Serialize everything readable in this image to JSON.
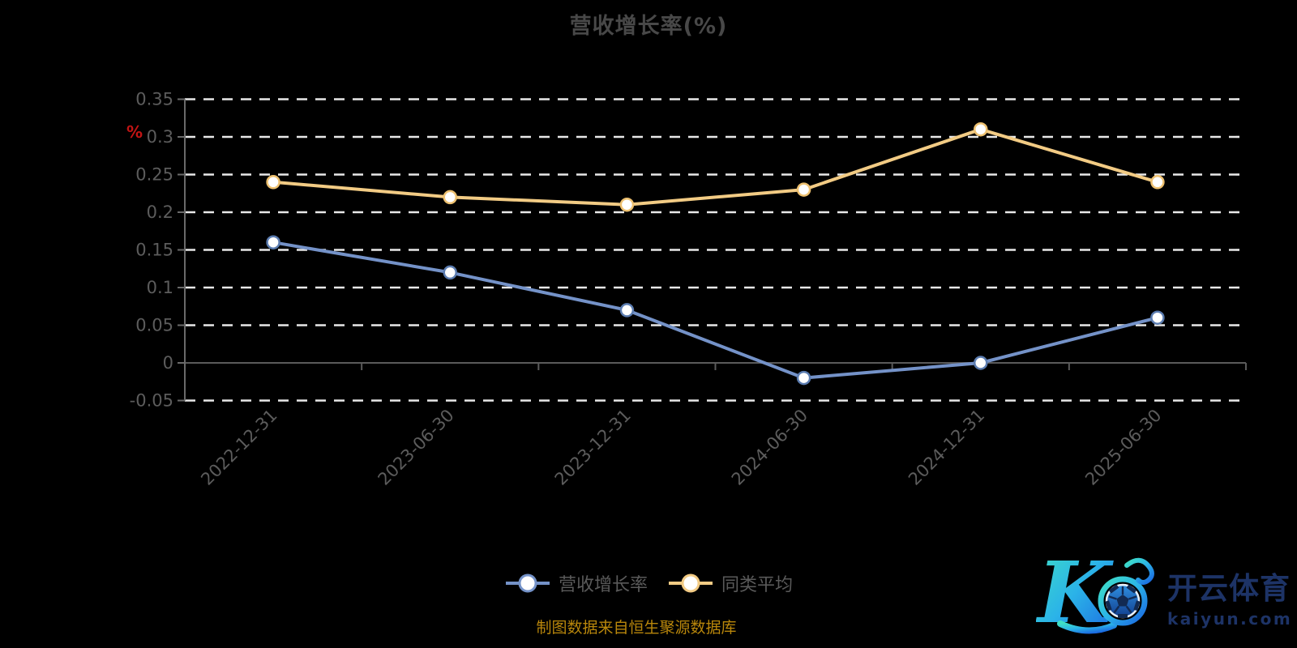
{
  "title": "营收增长率(%)",
  "y_axis_unit": "%",
  "source_note": "制图数据来自恒生聚源数据库",
  "logo": {
    "brand_cn": "开云体育",
    "domain": "kaiyun.com",
    "mark_letter": "K"
  },
  "colors": {
    "background": "#000000",
    "title_text": "#484848",
    "axis_label": "#5c5c5c",
    "axis_line": "#5a5a5a",
    "gridline": "#e8e8e8",
    "y_unit_red": "#c21414",
    "series_blue": "#7492c8",
    "series_yellow": "#f2cb84",
    "source_gold": "#b8860b",
    "logo_navy": "#1d3366"
  },
  "chart_data": {
    "type": "line",
    "categories": [
      "2022-12-31",
      "2023-06-30",
      "2023-12-31",
      "2024-06-30",
      "2024-12-31",
      "2025-06-30"
    ],
    "series": [
      {
        "name": "营收增长率",
        "color": "#7492c8",
        "marker_border": "#5b7cb0",
        "values": [
          0.16,
          0.12,
          0.07,
          -0.02,
          0,
          0.06
        ]
      },
      {
        "name": "同类平均",
        "color": "#f2cb84",
        "marker_border": "#eec170",
        "values": [
          0.24,
          0.22,
          0.21,
          0.23,
          0.31,
          0.24
        ]
      }
    ],
    "title": "营收增长率(%)",
    "xlabel": "",
    "ylabel": "%",
    "ylim": [
      -0.05,
      0.35
    ],
    "ytick_step": 0.05,
    "grid": true,
    "gridline_style": "dashed",
    "legend_position": "bottom",
    "x_label_rotation": 45
  }
}
